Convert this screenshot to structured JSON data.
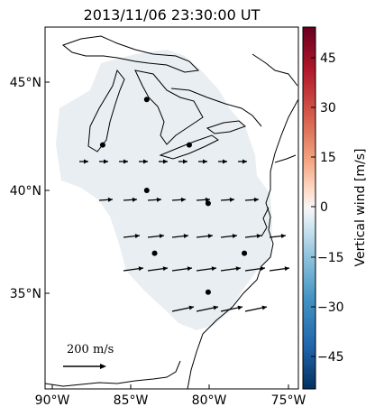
{
  "title": "2013/11/06 23:30:00 UT",
  "map": {
    "lon_ticks": [
      "90°W",
      "85°W",
      "80°W",
      "75°W"
    ],
    "lat_ticks": [
      "45°N",
      "40°N",
      "35°N"
    ],
    "scale_label": "200 m/s"
  },
  "colorbar": {
    "label": "Vertical wind [m/s]",
    "ticks": [
      "45",
      "30",
      "15",
      "0",
      "−15",
      "−30",
      "−45"
    ],
    "range": [
      -52,
      52
    ],
    "colors": {
      "max": "#67001f",
      "mid": "#f7f7f7",
      "min": "#053061"
    }
  },
  "stations": [
    {
      "lon": -86.8,
      "lat": 42.1
    },
    {
      "lon": -84.0,
      "lat": 44.2
    },
    {
      "lon": -81.3,
      "lat": 42.1
    },
    {
      "lon": -84.0,
      "lat": 40.0
    },
    {
      "lon": -80.1,
      "lat": 39.4
    },
    {
      "lon": -83.5,
      "lat": 37.1
    },
    {
      "lon": -77.8,
      "lat": 37.1
    },
    {
      "lon": -80.1,
      "lat": 35.3
    }
  ],
  "wind_vectors_note": "",
  "vertical_wind_field": "near 0 m/s across the domain (pale blue)"
}
